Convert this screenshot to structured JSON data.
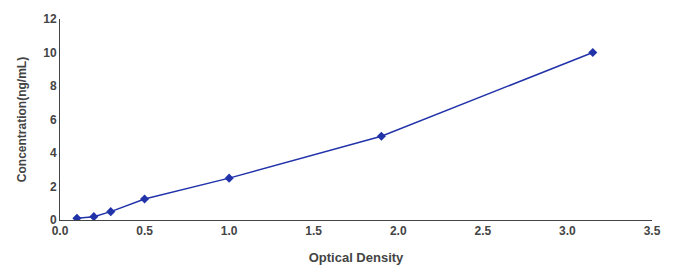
{
  "chart_data": {
    "type": "line",
    "x": [
      0.1,
      0.2,
      0.3,
      0.5,
      1.0,
      1.9,
      3.15
    ],
    "values": [
      0.1,
      0.2,
      0.5,
      1.25,
      2.5,
      5.0,
      10.0
    ],
    "color": "#2233AA",
    "marker": "diamond",
    "line_style": "solid",
    "xlabel": "Optical Density",
    "ylabel": "Concentration(ng/mL)",
    "xlim": [
      0,
      3.5
    ],
    "ylim": [
      0,
      12
    ],
    "xticks": [
      {
        "value": 0,
        "label": "0.0"
      },
      0.5,
      {
        "value": 1.0,
        "label": "1.0"
      },
      1.5,
      {
        "value": 2.0,
        "label": "2.0"
      },
      2.5,
      {
        "value": 3.0,
        "label": "3.0"
      },
      3.5
    ],
    "yticks": [
      0,
      2,
      4,
      6,
      8,
      10,
      12
    ],
    "grid": false
  }
}
